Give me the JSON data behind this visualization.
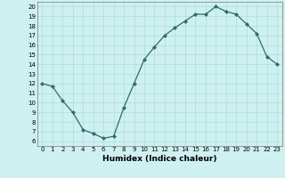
{
  "x": [
    0,
    1,
    2,
    3,
    4,
    5,
    6,
    7,
    8,
    9,
    10,
    11,
    12,
    13,
    14,
    15,
    16,
    17,
    18,
    19,
    20,
    21,
    22,
    23
  ],
  "y": [
    12.0,
    11.7,
    10.2,
    9.0,
    7.2,
    6.8,
    6.3,
    6.5,
    9.5,
    12.0,
    14.5,
    15.8,
    17.0,
    17.8,
    18.5,
    19.2,
    19.2,
    20.0,
    19.5,
    19.2,
    18.2,
    17.2,
    14.8,
    14.0
  ],
  "xlabel": "Humidex (Indice chaleur)",
  "ylim_min": 5.5,
  "ylim_max": 20.5,
  "xlim_min": -0.5,
  "xlim_max": 23.5,
  "yticks": [
    6,
    7,
    8,
    9,
    10,
    11,
    12,
    13,
    14,
    15,
    16,
    17,
    18,
    19,
    20
  ],
  "xticks": [
    0,
    1,
    2,
    3,
    4,
    5,
    6,
    7,
    8,
    9,
    10,
    11,
    12,
    13,
    14,
    15,
    16,
    17,
    18,
    19,
    20,
    21,
    22,
    23
  ],
  "line_color": "#2e6b6b",
  "marker_color": "#2e6b6b",
  "bg_color": "#cff0f0",
  "grid_color": "#aadddd",
  "tick_fontsize": 5.0,
  "label_fontsize": 6.5,
  "label_fontweight": "bold"
}
